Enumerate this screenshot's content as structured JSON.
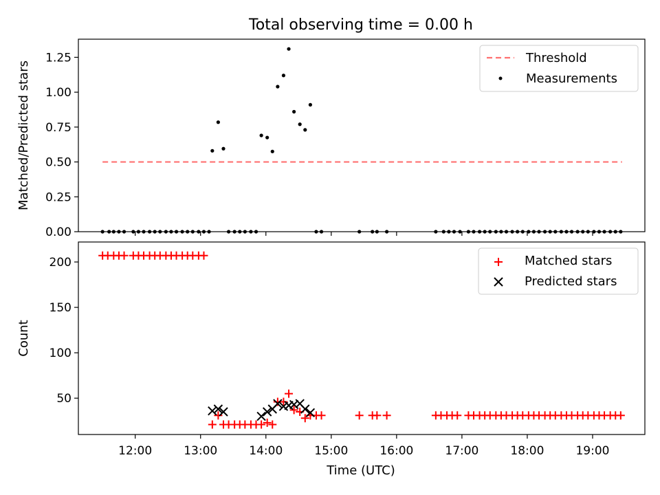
{
  "title": "Total observing time = 0.00 h",
  "chart_data": [
    {
      "type": "scatter",
      "ylabel": "Matched/Predicted stars",
      "ylim": [
        0,
        1.38
      ],
      "yticks": [
        0.0,
        0.25,
        0.5,
        0.75,
        1.0,
        1.25
      ],
      "ytick_labels": [
        "0.00",
        "0.25",
        "0.50",
        "0.75",
        "1.00",
        "1.25"
      ],
      "legend": [
        "Threshold",
        "Measurements"
      ],
      "legend_position": "top-right",
      "threshold": {
        "name": "Threshold",
        "value": 0.5,
        "x_start": 11.5,
        "x_end": 19.45,
        "color": "#ff7070"
      },
      "measurements": {
        "name": "Measurements",
        "color": "#000000",
        "points": [
          [
            11.5,
            0
          ],
          [
            11.6,
            0
          ],
          [
            11.67,
            0
          ],
          [
            11.75,
            0
          ],
          [
            11.83,
            0
          ],
          [
            11.97,
            0
          ],
          [
            12.05,
            0
          ],
          [
            12.13,
            0
          ],
          [
            12.22,
            0
          ],
          [
            12.3,
            0
          ],
          [
            12.38,
            0
          ],
          [
            12.47,
            0
          ],
          [
            12.55,
            0
          ],
          [
            12.63,
            0
          ],
          [
            12.72,
            0
          ],
          [
            12.8,
            0
          ],
          [
            12.88,
            0
          ],
          [
            12.97,
            0
          ],
          [
            13.05,
            0
          ],
          [
            13.13,
            0
          ],
          [
            13.18,
            0.58
          ],
          [
            13.27,
            0.785
          ],
          [
            13.35,
            0.595
          ],
          [
            13.43,
            0
          ],
          [
            13.52,
            0
          ],
          [
            13.6,
            0
          ],
          [
            13.68,
            0
          ],
          [
            13.77,
            0
          ],
          [
            13.85,
            0
          ],
          [
            13.93,
            0.69
          ],
          [
            14.02,
            0.675
          ],
          [
            14.1,
            0.575
          ],
          [
            14.18,
            1.04
          ],
          [
            14.27,
            1.12
          ],
          [
            14.35,
            1.31
          ],
          [
            14.43,
            0.86
          ],
          [
            14.52,
            0.77
          ],
          [
            14.6,
            0.73
          ],
          [
            14.68,
            0.91
          ],
          [
            14.77,
            0
          ],
          [
            14.85,
            0
          ],
          [
            15.43,
            0
          ],
          [
            15.63,
            0
          ],
          [
            15.7,
            0
          ],
          [
            15.85,
            0
          ],
          [
            16.6,
            0
          ],
          [
            16.72,
            0
          ],
          [
            16.8,
            0
          ],
          [
            16.88,
            0
          ],
          [
            16.97,
            0
          ],
          [
            17.1,
            0
          ],
          [
            17.18,
            0
          ],
          [
            17.27,
            0
          ],
          [
            17.35,
            0
          ],
          [
            17.43,
            0
          ],
          [
            17.52,
            0
          ],
          [
            17.6,
            0
          ],
          [
            17.68,
            0
          ],
          [
            17.77,
            0
          ],
          [
            17.85,
            0
          ],
          [
            17.93,
            0
          ],
          [
            18.02,
            0
          ],
          [
            18.1,
            0
          ],
          [
            18.18,
            0
          ],
          [
            18.27,
            0
          ],
          [
            18.35,
            0
          ],
          [
            18.43,
            0
          ],
          [
            18.52,
            0
          ],
          [
            18.6,
            0
          ],
          [
            18.68,
            0
          ],
          [
            18.77,
            0
          ],
          [
            18.85,
            0
          ],
          [
            18.93,
            0
          ],
          [
            19.02,
            0
          ],
          [
            19.1,
            0
          ],
          [
            19.18,
            0
          ],
          [
            19.27,
            0
          ],
          [
            19.35,
            0
          ],
          [
            19.43,
            0
          ]
        ]
      }
    },
    {
      "type": "scatter",
      "xlabel": "Time (UTC)",
      "ylabel": "Count",
      "xlim": [
        11.13,
        19.8
      ],
      "ylim": [
        10,
        222
      ],
      "yticks": [
        50,
        100,
        150,
        200
      ],
      "ytick_labels": [
        "50",
        "100",
        "150",
        "200"
      ],
      "xticks": [
        12,
        13,
        14,
        15,
        16,
        17,
        18,
        19
      ],
      "xtick_labels": [
        "12:00",
        "13:00",
        "14:00",
        "15:00",
        "16:00",
        "17:00",
        "18:00",
        "19:00"
      ],
      "legend": [
        "Matched stars",
        "Predicted stars"
      ],
      "legend_position": "top-right",
      "series": [
        {
          "name": "Matched stars",
          "marker": "plus",
          "color": "#ff0000",
          "points": [
            [
              11.5,
              207
            ],
            [
              11.58,
              207
            ],
            [
              11.67,
              207
            ],
            [
              11.75,
              207
            ],
            [
              11.83,
              207
            ],
            [
              11.97,
              207
            ],
            [
              12.05,
              207
            ],
            [
              12.13,
              207
            ],
            [
              12.22,
              207
            ],
            [
              12.3,
              207
            ],
            [
              12.38,
              207
            ],
            [
              12.47,
              207
            ],
            [
              12.55,
              207
            ],
            [
              12.63,
              207
            ],
            [
              12.72,
              207
            ],
            [
              12.8,
              207
            ],
            [
              12.88,
              207
            ],
            [
              12.97,
              207
            ],
            [
              13.05,
              207
            ],
            [
              13.18,
              21
            ],
            [
              13.27,
              31
            ],
            [
              13.35,
              21
            ],
            [
              13.43,
              21
            ],
            [
              13.52,
              21
            ],
            [
              13.6,
              21
            ],
            [
              13.68,
              21
            ],
            [
              13.77,
              21
            ],
            [
              13.85,
              21
            ],
            [
              13.93,
              21
            ],
            [
              14.02,
              23
            ],
            [
              14.1,
              21
            ],
            [
              14.18,
              46
            ],
            [
              14.27,
              46
            ],
            [
              14.35,
              55
            ],
            [
              14.43,
              37
            ],
            [
              14.52,
              35
            ],
            [
              14.6,
              28
            ],
            [
              14.68,
              31
            ],
            [
              14.77,
              31
            ],
            [
              14.85,
              31
            ],
            [
              15.43,
              31
            ],
            [
              15.63,
              31
            ],
            [
              15.7,
              31
            ],
            [
              15.85,
              31
            ],
            [
              16.6,
              31
            ],
            [
              16.68,
              31
            ],
            [
              16.77,
              31
            ],
            [
              16.85,
              31
            ],
            [
              16.93,
              31
            ],
            [
              17.1,
              31
            ],
            [
              17.18,
              31
            ],
            [
              17.27,
              31
            ],
            [
              17.35,
              31
            ],
            [
              17.43,
              31
            ],
            [
              17.52,
              31
            ],
            [
              17.6,
              31
            ],
            [
              17.68,
              31
            ],
            [
              17.77,
              31
            ],
            [
              17.85,
              31
            ],
            [
              17.93,
              31
            ],
            [
              18.02,
              31
            ],
            [
              18.1,
              31
            ],
            [
              18.18,
              31
            ],
            [
              18.27,
              31
            ],
            [
              18.35,
              31
            ],
            [
              18.43,
              31
            ],
            [
              18.52,
              31
            ],
            [
              18.6,
              31
            ],
            [
              18.68,
              31
            ],
            [
              18.77,
              31
            ],
            [
              18.85,
              31
            ],
            [
              18.93,
              31
            ],
            [
              19.02,
              31
            ],
            [
              19.1,
              31
            ],
            [
              19.18,
              31
            ],
            [
              19.27,
              31
            ],
            [
              19.35,
              31
            ],
            [
              19.43,
              31
            ]
          ]
        },
        {
          "name": "Predicted stars",
          "marker": "x",
          "color": "#000000",
          "points": [
            [
              13.18,
              36
            ],
            [
              13.27,
              38
            ],
            [
              13.35,
              35
            ],
            [
              13.93,
              30
            ],
            [
              14.02,
              35
            ],
            [
              14.1,
              38
            ],
            [
              14.18,
              44
            ],
            [
              14.27,
              41
            ],
            [
              14.35,
              42
            ],
            [
              14.43,
              43
            ],
            [
              14.52,
              44
            ],
            [
              14.6,
              38
            ],
            [
              14.68,
              34
            ]
          ]
        }
      ]
    }
  ]
}
